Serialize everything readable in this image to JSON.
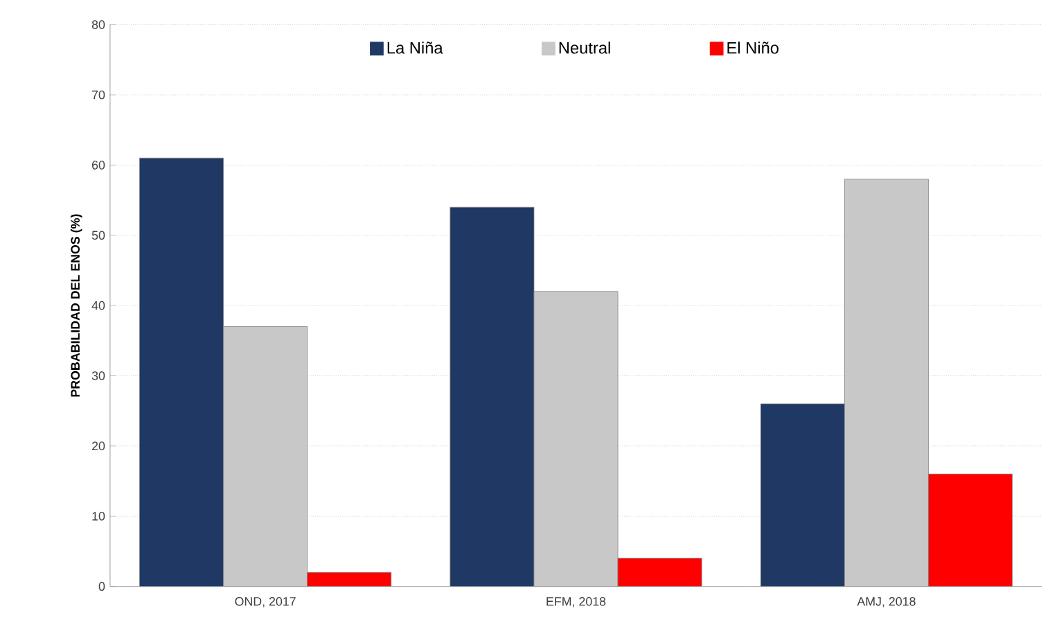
{
  "chart_data": {
    "type": "bar",
    "ylabel": "PROBABILIDAD DEL ENOS (%)",
    "categories": [
      "OND, 2017",
      "EFM, 2018",
      "AMJ, 2018"
    ],
    "series": [
      {
        "name": "La Niña",
        "color": "#1f3864",
        "values": [
          61,
          54,
          26
        ]
      },
      {
        "name": "Neutral",
        "color": "#c8c8c8",
        "values": [
          37,
          42,
          58
        ]
      },
      {
        "name": "El Niño",
        "color": "#ff0000",
        "values": [
          2,
          4,
          16
        ]
      }
    ],
    "ylim": [
      0,
      80
    ],
    "yticks": [
      0,
      10,
      20,
      30,
      40,
      50,
      60,
      70,
      80
    ],
    "grid": "y",
    "legend": "top"
  }
}
